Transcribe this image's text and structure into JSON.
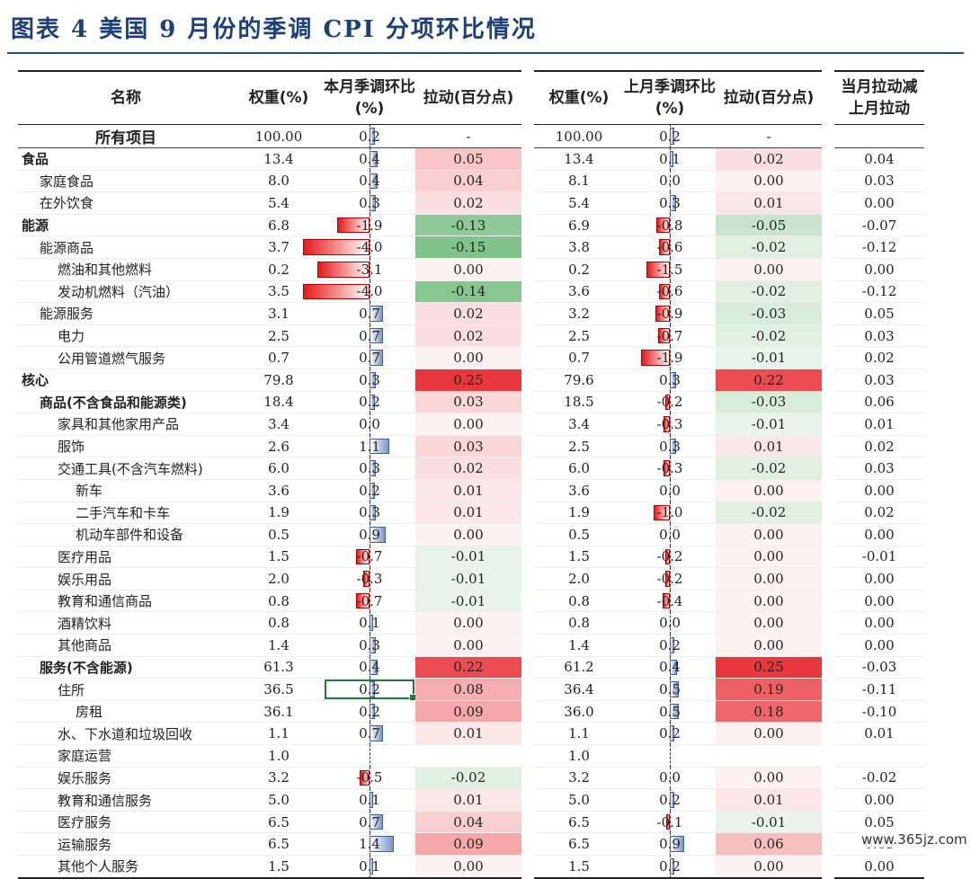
{
  "title": "图表 4    美国 9 月份的季调 CPI 分项环比情况",
  "header": {
    "name": "名称",
    "weight_cur": "权重(%)",
    "mom_cur": "本月季调环比(%)",
    "pull_cur": "拉动(百分点)",
    "weight_prev": "权重(%)",
    "mom_prev": "上月季调环比(%)",
    "pull_prev": "拉动(百分点)",
    "diff": "当月拉动减上月拉动"
  },
  "colors": {
    "pos_bar": "#7c97c8",
    "neg_bar": "#e41a1a",
    "pull_pos": "#e8383d",
    "pull_neg": "#3fa34d",
    "title": "#1f3f7a",
    "selection": "#1f7a3a"
  },
  "rows": [
    {
      "name": "所有项目",
      "indent": 0,
      "cls": "all",
      "w": "100.00",
      "m": "0.2",
      "p": "-",
      "w2": "100.00",
      "m2": "0.2",
      "p2": "-",
      "d": ""
    },
    {
      "name": "食品",
      "indent": 0,
      "cls": "cat",
      "w": "13.4",
      "m": "0.4",
      "p": "0.05",
      "w2": "13.4",
      "m2": "0.1",
      "p2": "0.02",
      "d": "0.04"
    },
    {
      "name": "家庭食品",
      "indent": 1,
      "w": "8.0",
      "m": "0.4",
      "p": "0.04",
      "w2": "8.1",
      "m2": "0.0",
      "p2": "0.00",
      "d": "0.03"
    },
    {
      "name": "在外饮食",
      "indent": 1,
      "w": "5.4",
      "m": "0.3",
      "p": "0.02",
      "w2": "5.4",
      "m2": "0.3",
      "p2": "0.01",
      "d": "0.00"
    },
    {
      "name": "能源",
      "indent": 0,
      "cls": "cat",
      "w": "6.8",
      "m": "-1.9",
      "p": "-0.13",
      "w2": "6.9",
      "m2": "-0.8",
      "p2": "-0.05",
      "d": "-0.07"
    },
    {
      "name": "能源商品",
      "indent": 1,
      "w": "3.7",
      "m": "-4.0",
      "p": "-0.15",
      "w2": "3.8",
      "m2": "-0.6",
      "p2": "-0.02",
      "d": "-0.12"
    },
    {
      "name": "燃油和其他燃料",
      "indent": 2,
      "w": "0.2",
      "m": "-3.1",
      "p": "0.00",
      "w2": "0.2",
      "m2": "-1.5",
      "p2": "0.00",
      "d": "0.00"
    },
    {
      "name": "发动机燃料（汽油）",
      "indent": 2,
      "w": "3.5",
      "m": "-4.0",
      "p": "-0.14",
      "w2": "3.6",
      "m2": "-0.6",
      "p2": "-0.02",
      "d": "-0.12"
    },
    {
      "name": "能源服务",
      "indent": 1,
      "w": "3.1",
      "m": "0.7",
      "p": "0.02",
      "w2": "3.2",
      "m2": "-0.9",
      "p2": "-0.03",
      "d": "0.05"
    },
    {
      "name": "电力",
      "indent": 2,
      "w": "2.5",
      "m": "0.7",
      "p": "0.02",
      "w2": "2.5",
      "m2": "-0.7",
      "p2": "-0.02",
      "d": "0.03"
    },
    {
      "name": "公用管道燃气服务",
      "indent": 2,
      "w": "0.7",
      "m": "0.7",
      "p": "0.00",
      "w2": "0.7",
      "m2": "-1.9",
      "p2": "-0.01",
      "d": "0.02"
    },
    {
      "name": "核心",
      "indent": 0,
      "cls": "cat",
      "w": "79.8",
      "m": "0.3",
      "p": "0.25",
      "w2": "79.6",
      "m2": "0.3",
      "p2": "0.22",
      "d": "0.03"
    },
    {
      "name": "商品(不含食品和能源类)",
      "indent": 1,
      "cls": "sub",
      "w": "18.4",
      "m": "0.2",
      "p": "0.03",
      "w2": "18.5",
      "m2": "-0.2",
      "p2": "-0.03",
      "d": "0.06"
    },
    {
      "name": "家具和其他家用产品",
      "indent": 2,
      "w": "3.4",
      "m": "0.0",
      "p": "0.00",
      "w2": "3.4",
      "m2": "-0.3",
      "p2": "-0.01",
      "d": "0.01"
    },
    {
      "name": "服饰",
      "indent": 2,
      "w": "2.6",
      "m": "1.1",
      "p": "0.03",
      "w2": "2.5",
      "m2": "0.3",
      "p2": "0.01",
      "d": "0.02"
    },
    {
      "name": "交通工具(不含汽车燃料)",
      "indent": 2,
      "w": "6.0",
      "m": "0.3",
      "p": "0.02",
      "w2": "6.0",
      "m2": "-0.3",
      "p2": "-0.02",
      "d": "0.03"
    },
    {
      "name": "新车",
      "indent": 3,
      "w": "3.6",
      "m": "0.2",
      "p": "0.01",
      "w2": "3.6",
      "m2": "0.0",
      "p2": "0.00",
      "d": "0.00"
    },
    {
      "name": "二手汽车和卡车",
      "indent": 3,
      "w": "1.9",
      "m": "0.3",
      "p": "0.01",
      "w2": "1.9",
      "m2": "-1.0",
      "p2": "-0.02",
      "d": "0.02"
    },
    {
      "name": "机动车部件和设备",
      "indent": 3,
      "w": "0.5",
      "m": "0.9",
      "p": "0.00",
      "w2": "0.5",
      "m2": "0.0",
      "p2": "0.00",
      "d": "0.00"
    },
    {
      "name": "医疗用品",
      "indent": 2,
      "w": "1.5",
      "m": "-0.7",
      "p": "-0.01",
      "w2": "1.5",
      "m2": "-0.2",
      "p2": "0.00",
      "d": "-0.01"
    },
    {
      "name": "娱乐用品",
      "indent": 2,
      "w": "2.0",
      "m": "-0.3",
      "p": "-0.01",
      "w2": "2.0",
      "m2": "-0.2",
      "p2": "0.00",
      "d": "0.00"
    },
    {
      "name": "教育和通信商品",
      "indent": 2,
      "w": "0.8",
      "m": "-0.7",
      "p": "-0.01",
      "w2": "0.8",
      "m2": "-0.4",
      "p2": "0.00",
      "d": "0.00"
    },
    {
      "name": "酒精饮料",
      "indent": 2,
      "w": "0.8",
      "m": "0.1",
      "p": "0.00",
      "w2": "0.8",
      "m2": "0.0",
      "p2": "0.00",
      "d": "0.00"
    },
    {
      "name": "其他商品",
      "indent": 2,
      "w": "1.4",
      "m": "0.3",
      "p": "0.00",
      "w2": "1.4",
      "m2": "0.2",
      "p2": "0.00",
      "d": "0.00"
    },
    {
      "name": "服务(不含能源)",
      "indent": 1,
      "cls": "cat",
      "w": "61.3",
      "m": "0.4",
      "p": "0.22",
      "w2": "61.2",
      "m2": "0.4",
      "p2": "0.25",
      "d": "-0.03"
    },
    {
      "name": "住所",
      "indent": 2,
      "w": "36.5",
      "m": "0.2",
      "p": "0.08",
      "w2": "36.4",
      "m2": "0.5",
      "p2": "0.19",
      "d": "-0.11",
      "selected": true
    },
    {
      "name": "房租",
      "indent": 3,
      "w": "36.1",
      "m": "0.2",
      "p": "0.09",
      "w2": "36.0",
      "m2": "0.5",
      "p2": "0.18",
      "d": "-0.10"
    },
    {
      "name": "水、下水道和垃圾回收",
      "indent": 2,
      "w": "1.1",
      "m": "0.7",
      "p": "0.01",
      "w2": "1.1",
      "m2": "0.2",
      "p2": "0.00",
      "d": "0.01"
    },
    {
      "name": "家庭运营",
      "indent": 2,
      "w": "1.0",
      "m": "",
      "p": "",
      "w2": "1.0",
      "m2": "",
      "p2": "",
      "d": ""
    },
    {
      "name": "娱乐服务",
      "indent": 2,
      "w": "3.2",
      "m": "-0.5",
      "p": "-0.02",
      "w2": "3.2",
      "m2": "0.0",
      "p2": "0.00",
      "d": "-0.02"
    },
    {
      "name": "教育和通信服务",
      "indent": 2,
      "w": "5.0",
      "m": "0.1",
      "p": "0.01",
      "w2": "5.0",
      "m2": "0.2",
      "p2": "0.01",
      "d": "0.00"
    },
    {
      "name": "医疗服务",
      "indent": 2,
      "w": "6.5",
      "m": "0.7",
      "p": "0.04",
      "w2": "6.5",
      "m2": "-0.1",
      "p2": "-0.01",
      "d": "0.05"
    },
    {
      "name": "运输服务",
      "indent": 2,
      "w": "6.5",
      "m": "1.4",
      "p": "0.09",
      "w2": "6.5",
      "m2": "0.9",
      "p2": "0.06",
      "d": "0.03"
    },
    {
      "name": "其他个人服务",
      "indent": 2,
      "w": "1.5",
      "m": "0.1",
      "p": "0.00",
      "w2": "1.5",
      "m2": "0.2",
      "p2": "0.00",
      "d": "0.00"
    }
  ],
  "watermark": "www.365jz.com"
}
